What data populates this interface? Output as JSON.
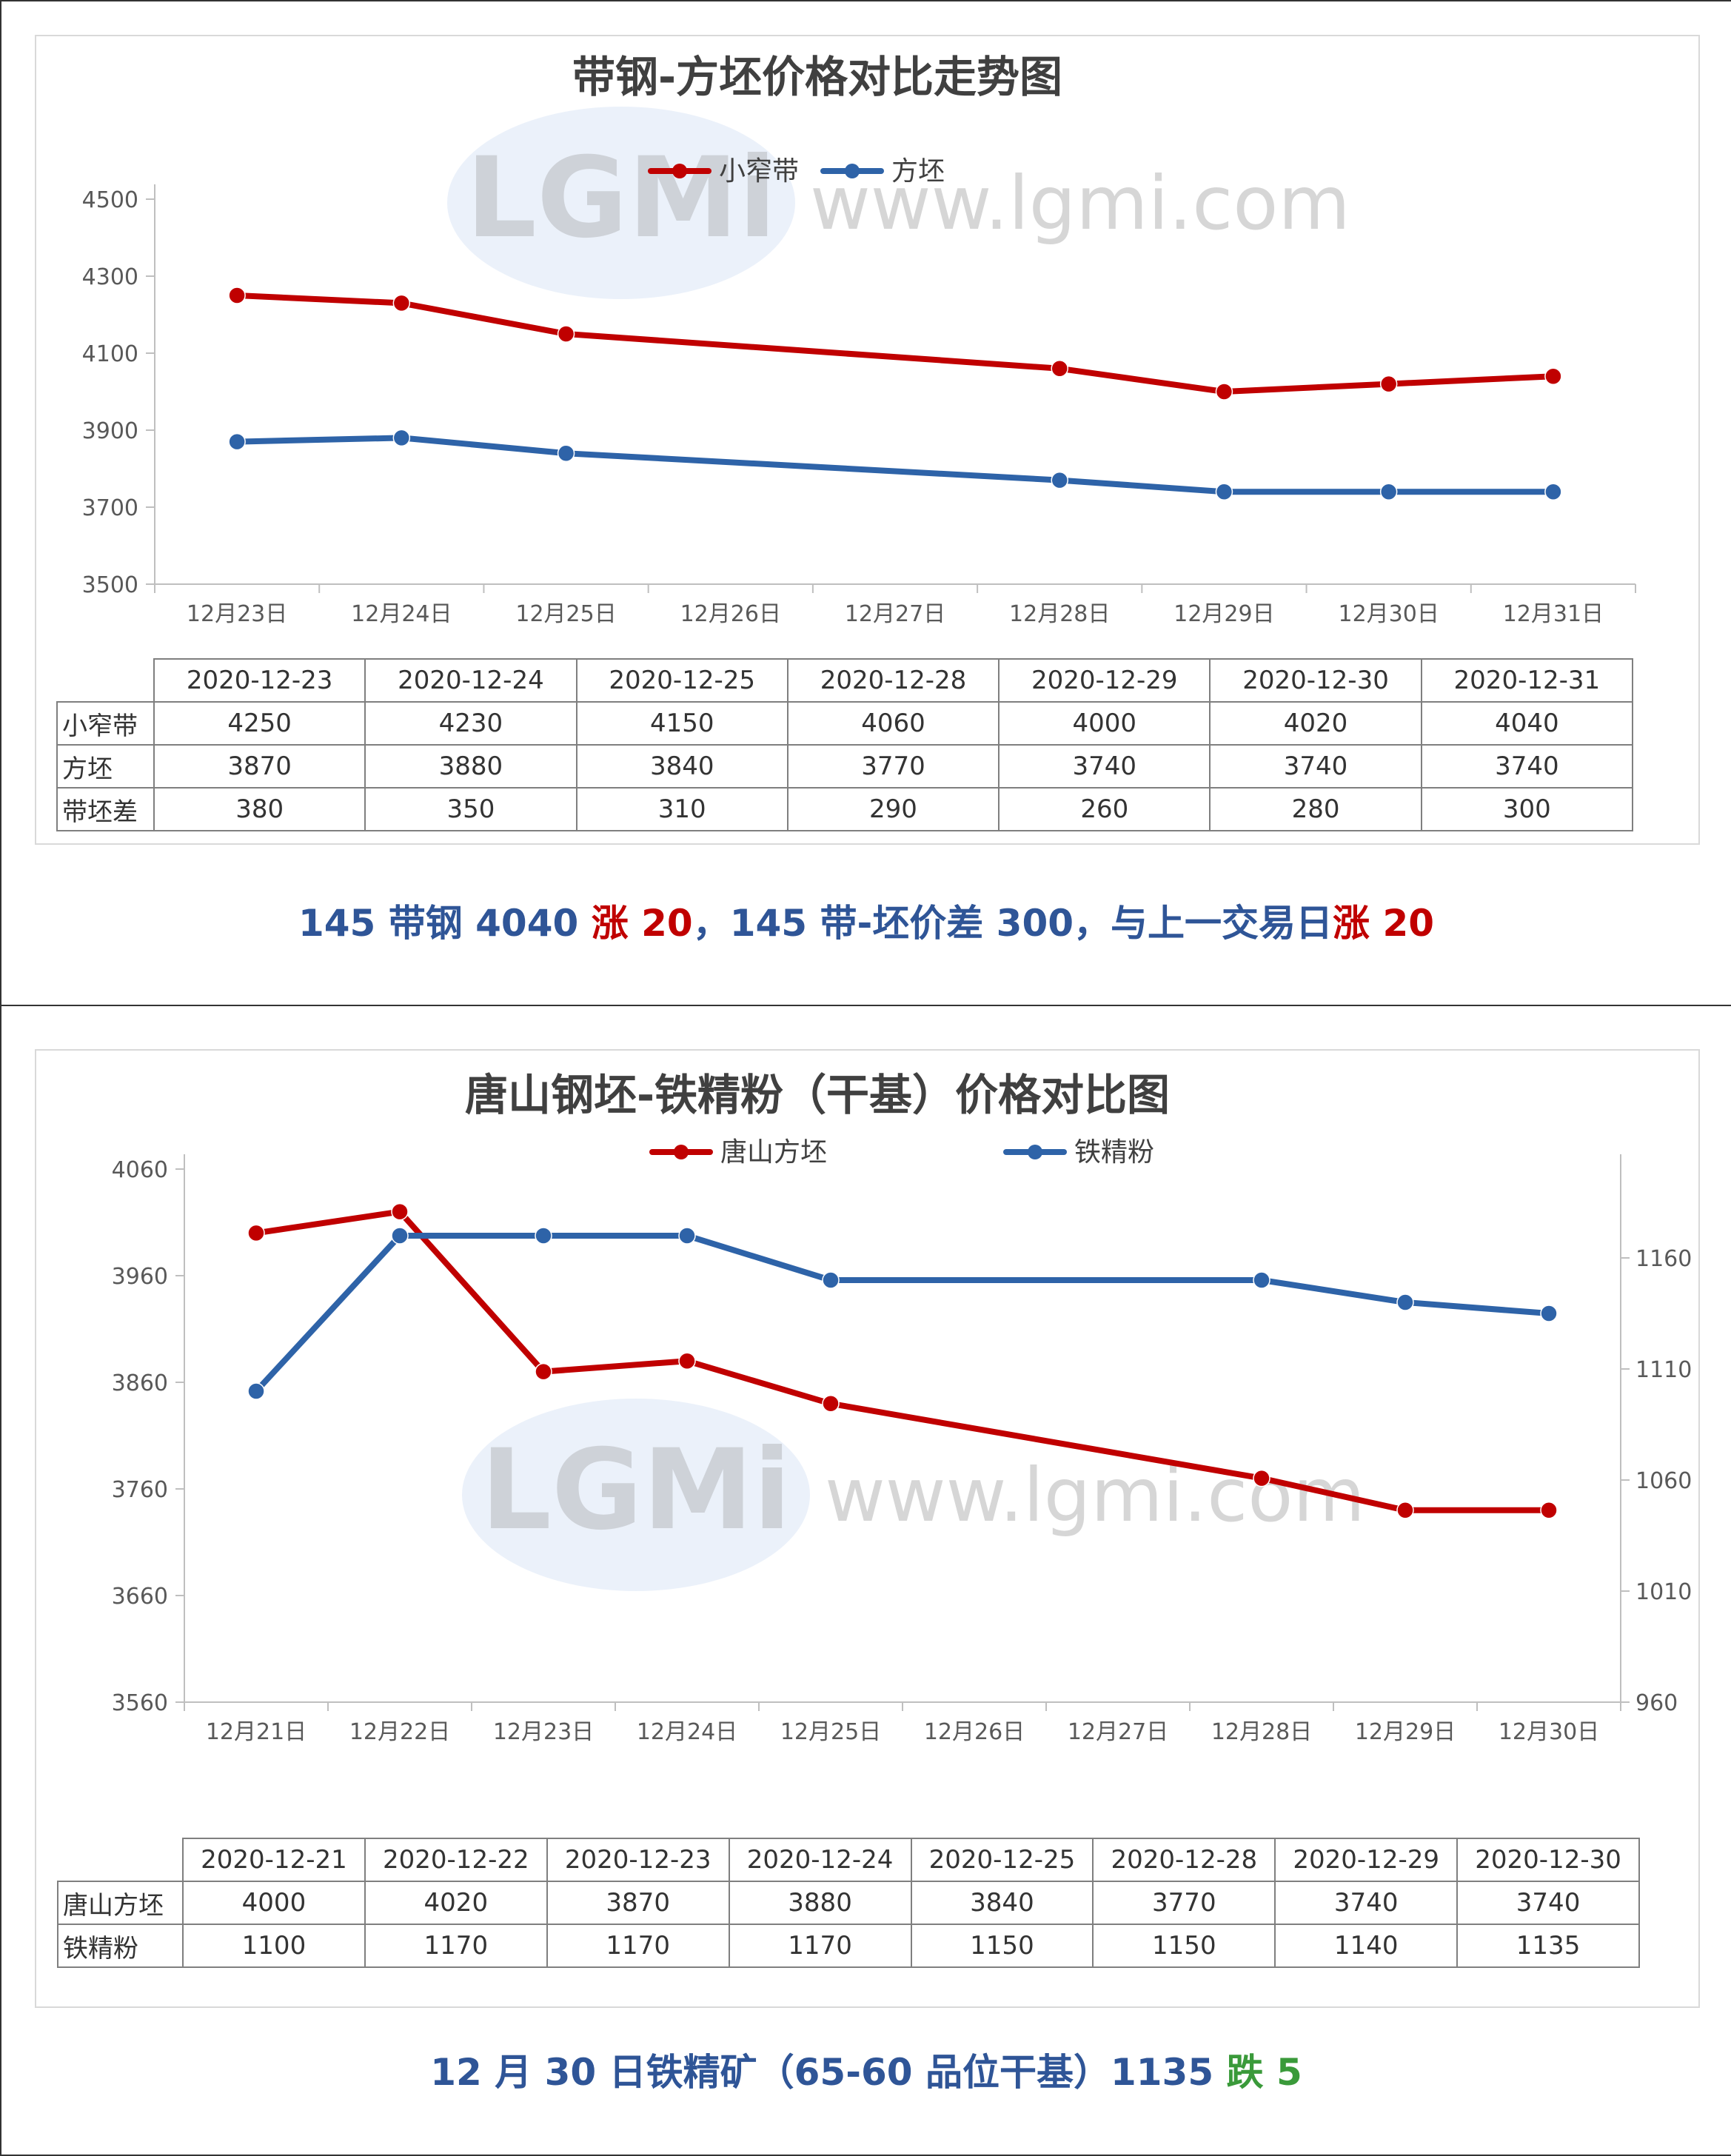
{
  "chart1": {
    "title": "带钢-方坯价格对比走势图",
    "legend": [
      "小窄带",
      "方坯"
    ],
    "watermark": "www.lgmi.com",
    "watermark_logo": "LGMi",
    "colors": {
      "series_1": "#c00000",
      "series_2": "#2e63a8"
    },
    "caption": {
      "part1": "145 带钢 4040 ",
      "part2": "涨 20",
      "part3": "，145 带-坯价差 300，与上一交易日",
      "part4": "涨 20"
    }
  },
  "chart2": {
    "title": "唐山钢坯-铁精粉（干基）价格对比图",
    "legend": [
      "唐山方坯",
      "铁精粉"
    ],
    "watermark": "www.lgmi.com",
    "watermark_logo": "LGMi",
    "colors": {
      "series_1": "#c00000",
      "series_2": "#2e63a8"
    },
    "caption": {
      "part1": "12 月 30 日铁精矿（65-60 品位干基）1135 ",
      "part2": "跌 5"
    }
  },
  "table1": {
    "headers": [
      "2020-12-23",
      "2020-12-24",
      "2020-12-25",
      "2020-12-28",
      "2020-12-29",
      "2020-12-30",
      "2020-12-31"
    ],
    "rows": [
      {
        "label": "小窄带",
        "values": [
          "4250",
          "4230",
          "4150",
          "4060",
          "4000",
          "4020",
          "4040"
        ]
      },
      {
        "label": "方坯",
        "values": [
          "3870",
          "3880",
          "3840",
          "3770",
          "3740",
          "3740",
          "3740"
        ]
      },
      {
        "label": "带坯差",
        "values": [
          "380",
          "350",
          "310",
          "290",
          "260",
          "280",
          "300"
        ]
      }
    ]
  },
  "table2": {
    "headers": [
      "2020-12-21",
      "2020-12-22",
      "2020-12-23",
      "2020-12-24",
      "2020-12-25",
      "2020-12-28",
      "2020-12-29",
      "2020-12-30"
    ],
    "rows": [
      {
        "label": "唐山方坯",
        "values": [
          "4000",
          "4020",
          "3870",
          "3880",
          "3840",
          "3770",
          "3740",
          "3740"
        ]
      },
      {
        "label": "铁精粉",
        "values": [
          "1100",
          "1170",
          "1170",
          "1170",
          "1150",
          "1150",
          "1140",
          "1135"
        ]
      }
    ]
  },
  "chart_data": [
    {
      "type": "line",
      "title": "带钢-方坯价格对比走势图",
      "x": [
        "12月23日",
        "12月24日",
        "12月25日",
        "12月26日",
        "12月27日",
        "12月28日",
        "12月29日",
        "12月30日",
        "12月31日"
      ],
      "series": [
        {
          "name": "小窄带",
          "values": [
            4250,
            4230,
            4150,
            null,
            null,
            4060,
            4000,
            4020,
            4040
          ]
        },
        {
          "name": "方坯",
          "values": [
            3870,
            3880,
            3840,
            null,
            null,
            3770,
            3740,
            3740,
            3740
          ]
        }
      ],
      "yticks": [
        3500,
        3700,
        3900,
        4100,
        4300,
        4500
      ],
      "ylim": [
        3500,
        4500
      ],
      "legend_position": "top",
      "grid": false
    },
    {
      "type": "line",
      "title": "唐山钢坯-铁精粉（干基）价格对比图",
      "x": [
        "12月21日",
        "12月22日",
        "12月23日",
        "12月24日",
        "12月25日",
        "12月26日",
        "12月27日",
        "12月28日",
        "12月29日",
        "12月30日"
      ],
      "series": [
        {
          "name": "唐山方坯",
          "axis": "left",
          "values": [
            4000,
            4020,
            3870,
            3880,
            3840,
            null,
            null,
            3770,
            3740,
            3740
          ]
        },
        {
          "name": "铁精粉",
          "axis": "right",
          "values": [
            1100,
            1170,
            1170,
            1170,
            1150,
            null,
            null,
            1150,
            1140,
            1135
          ]
        }
      ],
      "yticks_left": [
        3560,
        3660,
        3760,
        3860,
        3960,
        4060
      ],
      "ylim_left": [
        3560,
        4060
      ],
      "yticks_right": [
        960,
        1010,
        1060,
        1110,
        1160
      ],
      "ylim_right": [
        960,
        1200
      ],
      "legend_position": "top",
      "grid": false
    }
  ]
}
